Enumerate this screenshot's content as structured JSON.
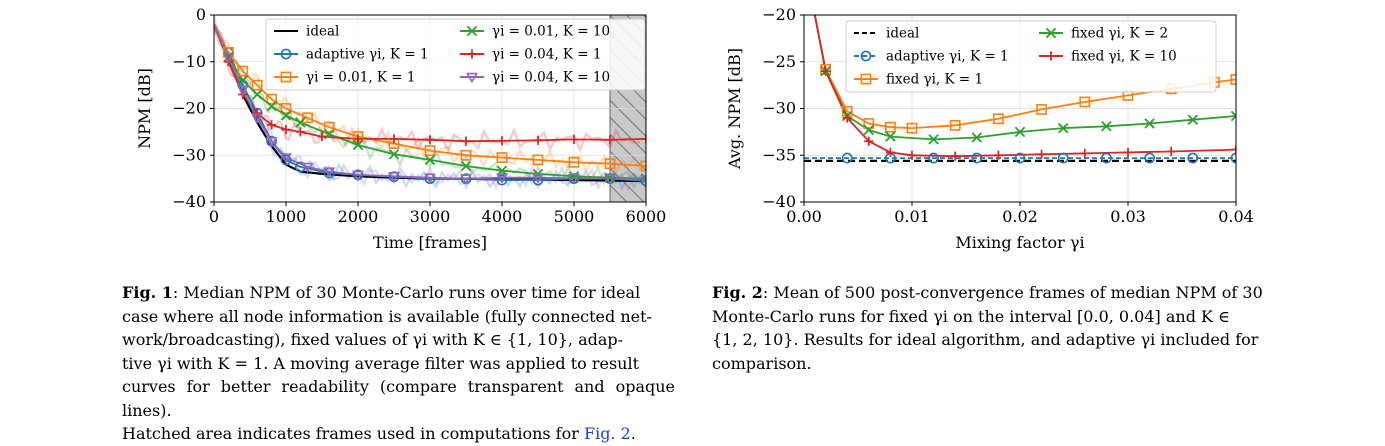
{
  "figure1": {
    "caption_label": "Fig. 1",
    "caption_lines": [
      ": Median NPM of 30 Monte-Carlo runs over time for ideal",
      "case where all node information is available (fully connected net-",
      "work/broadcasting), fixed values of γi with K ∈ {1, 10}, adap-",
      "tive γi with K = 1. A moving average filter was applied to result",
      "curves for better readability (compare transparent and opaque lines).",
      "Hatched area indicates frames used in computations for "
    ],
    "caption_ref": "Fig. 2",
    "caption_end": "."
  },
  "figure2": {
    "caption_label": "Fig. 2",
    "caption_lines": [
      ": Mean of 500 post-convergence frames of median NPM of 30",
      "Monte-Carlo runs for fixed γi on the interval [0.0, 0.04] and K ∈",
      "{1, 2, 10}. Results for ideal algorithm, and adaptive γi included for",
      "comparison."
    ]
  },
  "chart_data": [
    {
      "type": "line",
      "xlabel": "Time [frames]",
      "ylabel": "NPM [dB]",
      "xlim": [
        0,
        6000
      ],
      "ylim": [
        -40,
        0
      ],
      "xticks": [
        0,
        1000,
        2000,
        3000,
        4000,
        5000,
        6000
      ],
      "yticks": [
        0,
        -10,
        -20,
        -30,
        -40
      ],
      "grid": true,
      "legend_position": "top-right",
      "legend_columns": 2,
      "hatched_region": [
        5500,
        6000
      ],
      "series": [
        {
          "name": "ideal",
          "color": "#000000",
          "marker": "none",
          "x": [
            0,
            200,
            400,
            600,
            800,
            1000,
            1200,
            1500,
            2000,
            2500,
            3000,
            3500,
            4000,
            4500,
            5000,
            5500,
            6000
          ],
          "y": [
            -2,
            -9,
            -17,
            -23,
            -28,
            -32,
            -33.5,
            -34,
            -34.5,
            -34.8,
            -35,
            -35,
            -35.2,
            -35.2,
            -35.3,
            -35.4,
            -35.5
          ]
        },
        {
          "name": "adaptive γi, K = 1",
          "color": "#1f77b4",
          "marker": "circle",
          "x": [
            0,
            200,
            400,
            600,
            800,
            1000,
            1200,
            1600,
            2000,
            2500,
            3000,
            3500,
            4000,
            4500,
            5000,
            5500,
            6000
          ],
          "y": [
            -2,
            -8,
            -15,
            -21,
            -27,
            -31,
            -32.5,
            -33.8,
            -34.2,
            -34.6,
            -35,
            -35,
            -35.3,
            -35.3,
            -35,
            -35,
            -35.5
          ]
        },
        {
          "name": "γi = 0.01, K = 1",
          "color": "#ff7f0e",
          "marker": "square",
          "x": [
            0,
            200,
            400,
            600,
            800,
            1000,
            1300,
            1600,
            2000,
            2500,
            3000,
            3500,
            4000,
            4500,
            5000,
            5500,
            6000
          ],
          "y": [
            -2,
            -8,
            -12,
            -15,
            -18,
            -20,
            -22,
            -24,
            -26,
            -27.5,
            -29,
            -30,
            -30.5,
            -31,
            -31.5,
            -31.8,
            -32.3
          ]
        },
        {
          "name": "γi = 0.01, K = 10",
          "color": "#2ca02c",
          "marker": "x",
          "x": [
            0,
            200,
            400,
            600,
            800,
            1000,
            1200,
            1600,
            2000,
            2500,
            3000,
            3500,
            4000,
            4500,
            5000,
            5500,
            6000
          ],
          "y": [
            -2,
            -9,
            -14,
            -17,
            -19.5,
            -21.5,
            -23,
            -25.5,
            -27.8,
            -29.8,
            -31,
            -32.3,
            -33.3,
            -34,
            -34.5,
            -34.8,
            -35
          ]
        },
        {
          "name": "γi = 0.04, K = 1",
          "color": "#d62728",
          "marker": "plus",
          "x": [
            0,
            200,
            400,
            600,
            800,
            1000,
            1200,
            1500,
            2000,
            2500,
            3000,
            3500,
            4000,
            4500,
            5000,
            5500,
            6000
          ],
          "y": [
            -2,
            -10,
            -17,
            -21,
            -23.5,
            -24.5,
            -25,
            -26,
            -26.5,
            -26.5,
            -26.7,
            -27,
            -26.9,
            -26.8,
            -26.6,
            -26.7,
            -26.5
          ]
        },
        {
          "name": "γi = 0.04, K = 10",
          "color": "#9467bd",
          "marker": "triangle-down",
          "x": [
            0,
            200,
            400,
            600,
            800,
            1000,
            1300,
            1600,
            2000,
            2500,
            3000,
            3500,
            4000,
            4500,
            5000,
            5500,
            6000
          ],
          "y": [
            -2,
            -9,
            -16,
            -22,
            -27,
            -30.5,
            -32.5,
            -33.5,
            -34.2,
            -34.5,
            -34.8,
            -35,
            -34.8,
            -34.8,
            -34.9,
            -35,
            -35.2
          ]
        }
      ]
    },
    {
      "type": "line",
      "xlabel": "Mixing factor γi",
      "ylabel": "Avg. NPM [dB]",
      "xlim": [
        0,
        0.04
      ],
      "ylim": [
        -40,
        -20
      ],
      "xticks": [
        0.0,
        0.01,
        0.02,
        0.03,
        0.04
      ],
      "xtick_labels": [
        "0.00",
        "0.01",
        "0.02",
        "0.03",
        "0.04"
      ],
      "yticks": [
        -20,
        -25,
        -30,
        -35,
        -40
      ],
      "grid": true,
      "legend_position": "top",
      "legend_columns": 2,
      "series": [
        {
          "name": "ideal",
          "color": "#000000",
          "marker": "none",
          "dashed": true,
          "x": [
            0,
            0.04
          ],
          "y": [
            -35.6,
            -35.6
          ]
        },
        {
          "name": "adaptive γi, K = 1",
          "color": "#1f77b4",
          "marker": "circle",
          "dashed": true,
          "x": [
            0,
            0.004,
            0.008,
            0.012,
            0.016,
            0.02,
            0.024,
            0.028,
            0.032,
            0.036,
            0.04
          ],
          "y": [
            -35.3,
            -35.3,
            -35.3,
            -35.3,
            -35.3,
            -35.3,
            -35.3,
            -35.3,
            -35.3,
            -35.3,
            -35.3
          ]
        },
        {
          "name": "fixed γi, K = 1",
          "color": "#ff7f0e",
          "marker": "square",
          "x": [
            0.001,
            0.002,
            0.004,
            0.006,
            0.008,
            0.01,
            0.014,
            0.018,
            0.022,
            0.026,
            0.03,
            0.034,
            0.038,
            0.04
          ],
          "y": [
            -20,
            -25.8,
            -30.3,
            -31.6,
            -32,
            -32.1,
            -31.8,
            -31.1,
            -30.1,
            -29.3,
            -28.6,
            -27.9,
            -27.2,
            -26.9
          ]
        },
        {
          "name": "fixed γi, K = 2",
          "color": "#2ca02c",
          "marker": "x",
          "x": [
            0.001,
            0.002,
            0.004,
            0.006,
            0.008,
            0.012,
            0.016,
            0.02,
            0.024,
            0.028,
            0.032,
            0.036,
            0.04
          ],
          "y": [
            -20,
            -26,
            -30.8,
            -32.3,
            -33,
            -33.3,
            -33.1,
            -32.5,
            -32.1,
            -31.9,
            -31.6,
            -31.2,
            -30.8
          ]
        },
        {
          "name": "fixed γi, K = 10",
          "color": "#d62728",
          "marker": "plus",
          "x": [
            0.001,
            0.002,
            0.004,
            0.006,
            0.008,
            0.01,
            0.014,
            0.018,
            0.022,
            0.026,
            0.03,
            0.034,
            0.04
          ],
          "y": [
            -20,
            -26,
            -31,
            -33.5,
            -34.7,
            -35,
            -35.1,
            -35,
            -34.9,
            -34.8,
            -34.7,
            -34.6,
            -34.4
          ]
        }
      ]
    }
  ]
}
